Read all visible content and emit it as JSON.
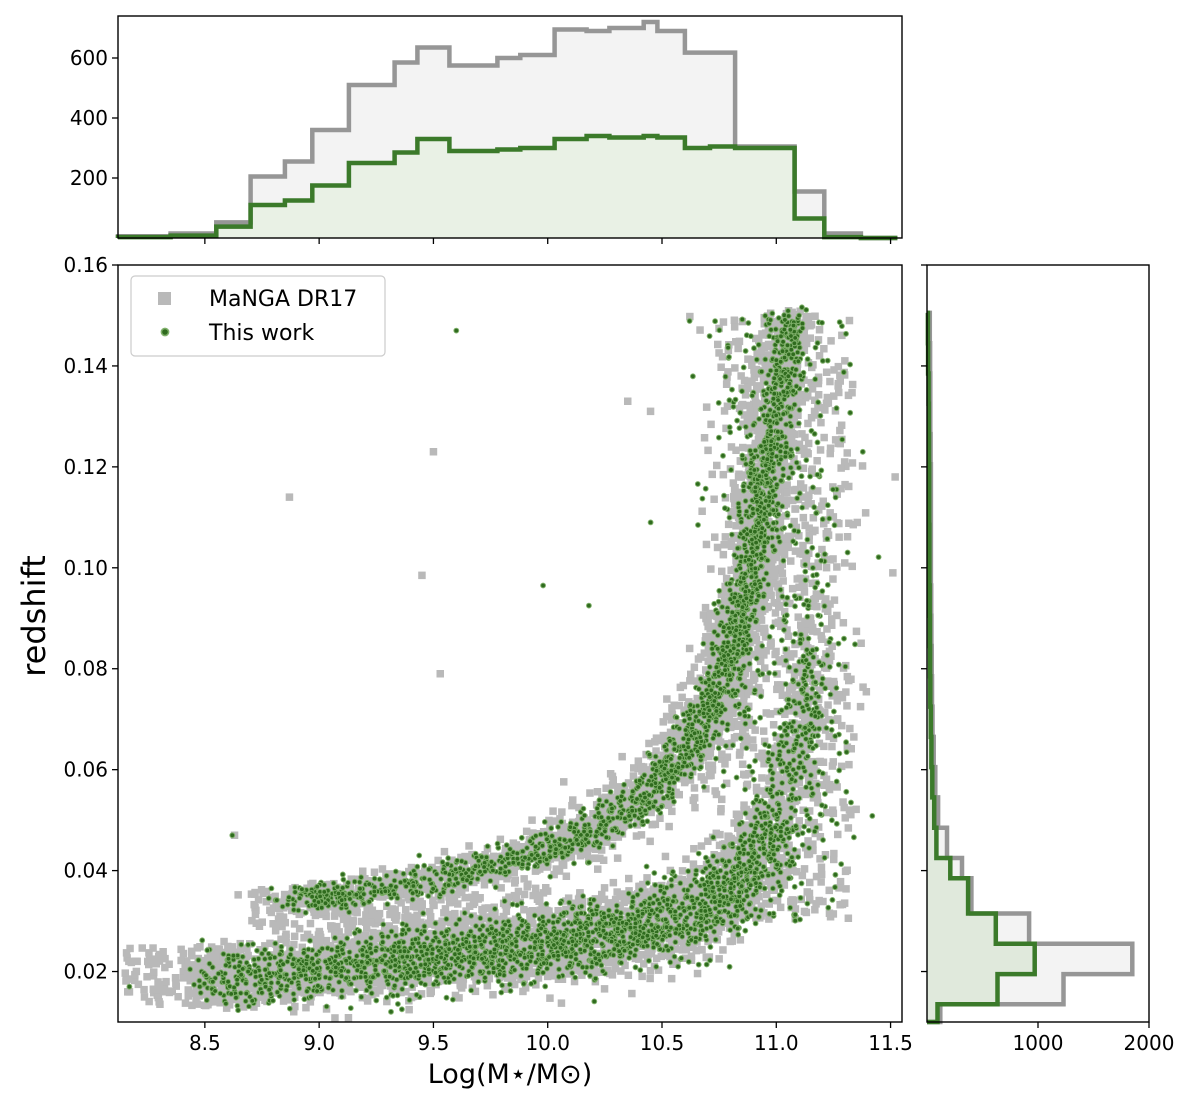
{
  "chart_data": [
    {
      "panel": "main",
      "type": "scatter",
      "xlabel": "Log(M⋆/M⊙)",
      "ylabel": "redshift",
      "xlim": [
        8.12,
        11.55
      ],
      "ylim": [
        0.01,
        0.16
      ],
      "xticks": [
        "8.5",
        "9.0",
        "9.5",
        "10.0",
        "10.5",
        "11.0",
        "11.5"
      ],
      "yticks": [
        "0.02",
        "0.04",
        "0.06",
        "0.08",
        "0.10",
        "0.12",
        "0.14",
        "0.16"
      ],
      "legend": {
        "location": "upper-left",
        "entries": [
          "MaNGA DR17",
          "This work"
        ]
      },
      "grid": false,
      "series": [
        {
          "name": "MaNGA DR17",
          "marker": "square",
          "color": "#b9b9b9",
          "approx_points": 10000,
          "description_points": [
            [
              8.87,
              0.114
            ],
            [
              9.5,
              0.123
            ],
            [
              9.45,
              0.0985
            ],
            [
              9.53,
              0.079
            ],
            [
              10.35,
              0.133
            ],
            [
              10.45,
              0.131
            ],
            [
              11.32,
              0.149
            ],
            [
              11.52,
              0.118
            ],
            [
              11.51,
              0.099
            ],
            [
              11.3,
              0.141
            ],
            [
              11.28,
              0.137
            ],
            [
              8.25,
              0.022
            ],
            [
              8.33,
              0.018
            ],
            [
              8.3,
              0.014
            ],
            [
              8.63,
              0.047
            ],
            [
              11.32,
              0.052
            ]
          ]
        },
        {
          "name": "This work",
          "marker": "circle",
          "color": "#2f6b1e",
          "edge_color": "#7fb06a",
          "approx_points": 5000,
          "description_points": [
            [
              9.6,
              0.147
            ],
            [
              9.98,
              0.0965
            ],
            [
              10.18,
              0.0925
            ],
            [
              10.45,
              0.109
            ],
            [
              10.85,
              0.135
            ],
            [
              11.1,
              0.15
            ],
            [
              8.62,
              0.047
            ],
            [
              8.17,
              0.017
            ]
          ]
        }
      ]
    },
    {
      "panel": "top-histogram",
      "type": "histogram-step",
      "x_edges": [
        8.12,
        8.35,
        8.55,
        8.7,
        8.85,
        8.97,
        9.13,
        9.33,
        9.43,
        9.57,
        9.78,
        9.88,
        10.03,
        10.17,
        10.27,
        10.42,
        10.48,
        10.6,
        10.71,
        10.82,
        11.08,
        11.21,
        11.37,
        11.53
      ],
      "ylim": [
        0,
        740
      ],
      "yticks": [
        "200",
        "400",
        "600"
      ],
      "series": [
        {
          "name": "MaNGA DR17",
          "color": "#969696",
          "fill": "#f3f3f3",
          "values": [
            6,
            15,
            52,
            205,
            255,
            360,
            510,
            585,
            635,
            575,
            600,
            610,
            695,
            690,
            700,
            720,
            690,
            618,
            618,
            305,
            155,
            15,
            0
          ]
        },
        {
          "name": "This work",
          "color": "#3b7a2a",
          "fill": "#e9f1e5",
          "values": [
            3,
            8,
            38,
            110,
            125,
            175,
            250,
            285,
            330,
            290,
            295,
            300,
            330,
            340,
            335,
            340,
            335,
            300,
            305,
            300,
            65,
            3,
            0
          ]
        }
      ]
    },
    {
      "panel": "right-histogram",
      "type": "histogram-step-horizontal",
      "y_edges": [
        0.01,
        0.0135,
        0.0195,
        0.0255,
        0.0315,
        0.0385,
        0.0425,
        0.0485,
        0.0545,
        0.0605,
        0.0665,
        0.0725,
        0.0785,
        0.0845,
        0.0905,
        0.0965,
        0.1025,
        0.1085,
        0.1145,
        0.1205,
        0.1265,
        0.1325,
        0.1385,
        0.1445,
        0.1505
      ],
      "xlim": [
        0,
        2000
      ],
      "xticks": [
        "1000",
        "2000"
      ],
      "series": [
        {
          "name": "MaNGA DR17",
          "color": "#969696",
          "fill": "#f3f3f3",
          "values": [
            120,
            1230,
            1850,
            920,
            400,
            315,
            180,
            100,
            75,
            60,
            50,
            45,
            42,
            40,
            38,
            35,
            35,
            35,
            35,
            32,
            30,
            30,
            28,
            25
          ]
        },
        {
          "name": "This work",
          "color": "#3b7a2a",
          "fill": "#e0e9dc",
          "values": [
            95,
            635,
            970,
            620,
            370,
            210,
            85,
            65,
            48,
            40,
            34,
            30,
            28,
            26,
            24,
            22,
            22,
            20,
            20,
            18,
            16,
            14,
            10,
            8
          ]
        }
      ]
    }
  ]
}
